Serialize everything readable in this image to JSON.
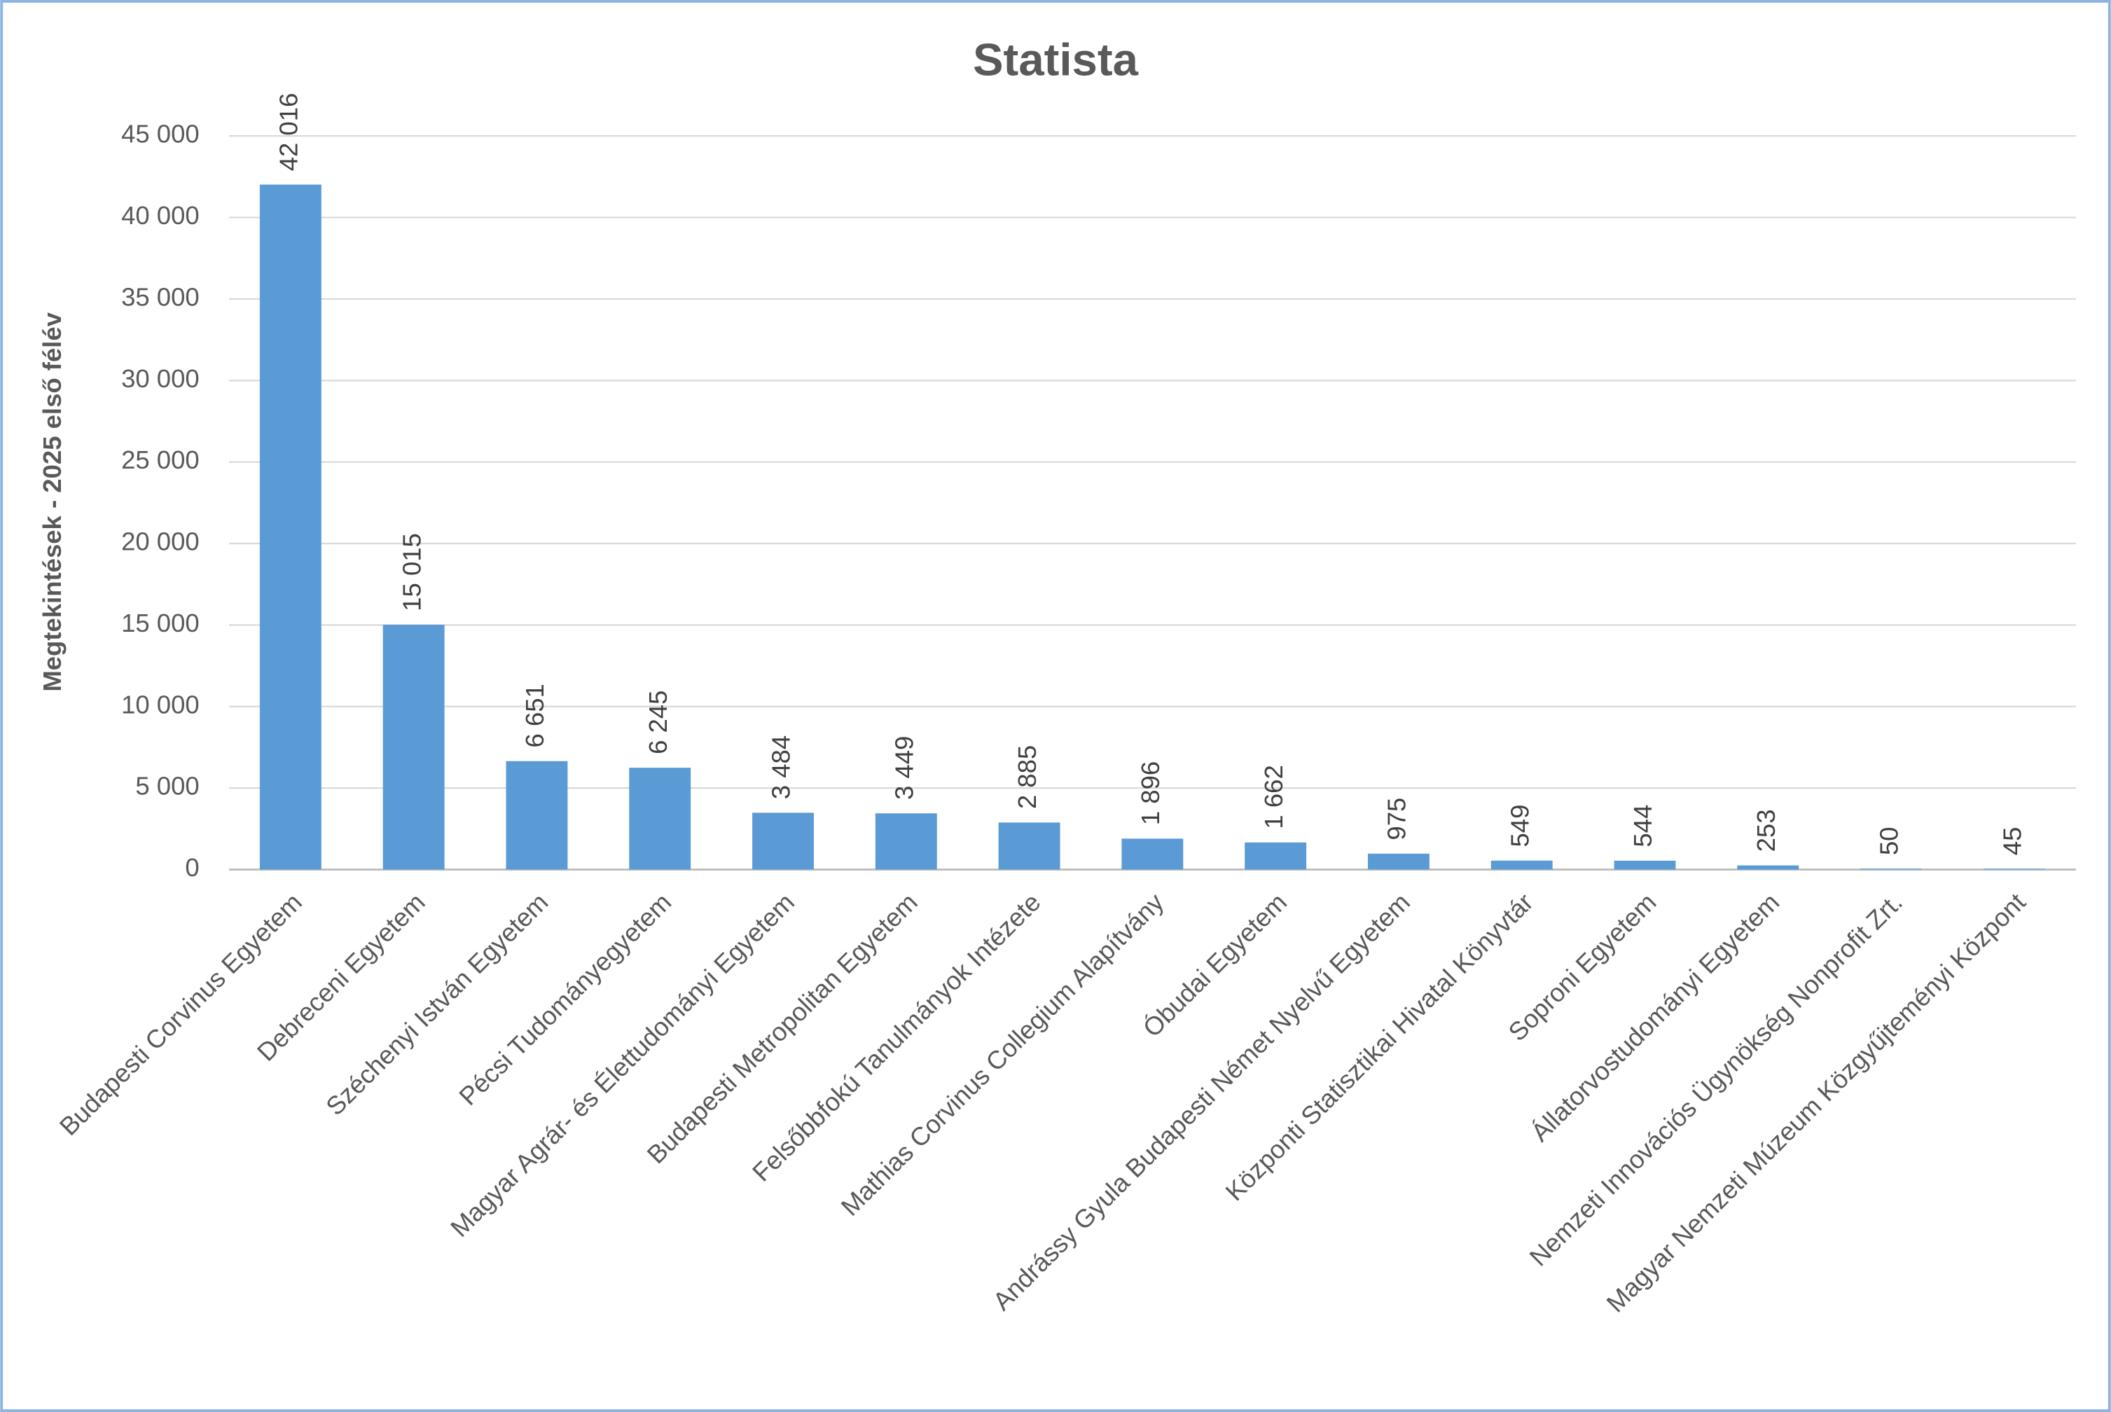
{
  "chart_data": {
    "type": "bar",
    "title": "Statista",
    "y_label": "Megtekintések - 2025 első félév",
    "categories": [
      "Budapesti Corvinus Egyetem",
      "Debreceni Egyetem",
      "Széchenyi István Egyetem",
      "Pécsi Tudományegyetem",
      "Magyar Agrár- és Élettudományi Egyetem",
      "Budapesti Metropolitan Egyetem",
      "Felsőbbfokú Tanulmányok Intézete",
      "Mathias Corvinus Collegium Alapítvány",
      "Óbudai Egyetem",
      "Andrássy Gyula Budapesti Német Nyelvű Egyetem",
      "Központi Statisztikai Hivatal Könyvtár",
      "Soproni Egyetem",
      "Állatorvostudományi Egyetem",
      "Nemzeti Innovációs Ügynökség Nonprofit Zrt.",
      "Magyar Nemzeti Múzeum Közgyűjteményi Központ"
    ],
    "values": [
      42016,
      15015,
      6651,
      6245,
      3484,
      3449,
      2885,
      1896,
      1662,
      975,
      549,
      544,
      253,
      50,
      45
    ],
    "value_labels": [
      "42 016",
      "15 015",
      "6 651",
      "6 245",
      "3 484",
      "3 449",
      "2 885",
      "1 896",
      "1 662",
      "975",
      "549",
      "544",
      "253",
      "50",
      "45"
    ],
    "color": "#5b9bd5",
    "ylim": [
      0,
      45000
    ],
    "yticks": [
      0,
      {
        "value": 5000,
        "label": "5 000"
      },
      {
        "value": 10000,
        "label": "10 000"
      },
      {
        "value": 15000,
        "label": "15 000"
      },
      {
        "value": 20000,
        "label": "20 000"
      },
      {
        "value": 25000,
        "label": "25 000"
      },
      {
        "value": 30000,
        "label": "30 000"
      },
      {
        "value": 35000,
        "label": "35 000"
      },
      {
        "value": 40000,
        "label": "40 000"
      },
      {
        "value": 45000,
        "label": "45 000"
      }
    ],
    "grid": true
  }
}
